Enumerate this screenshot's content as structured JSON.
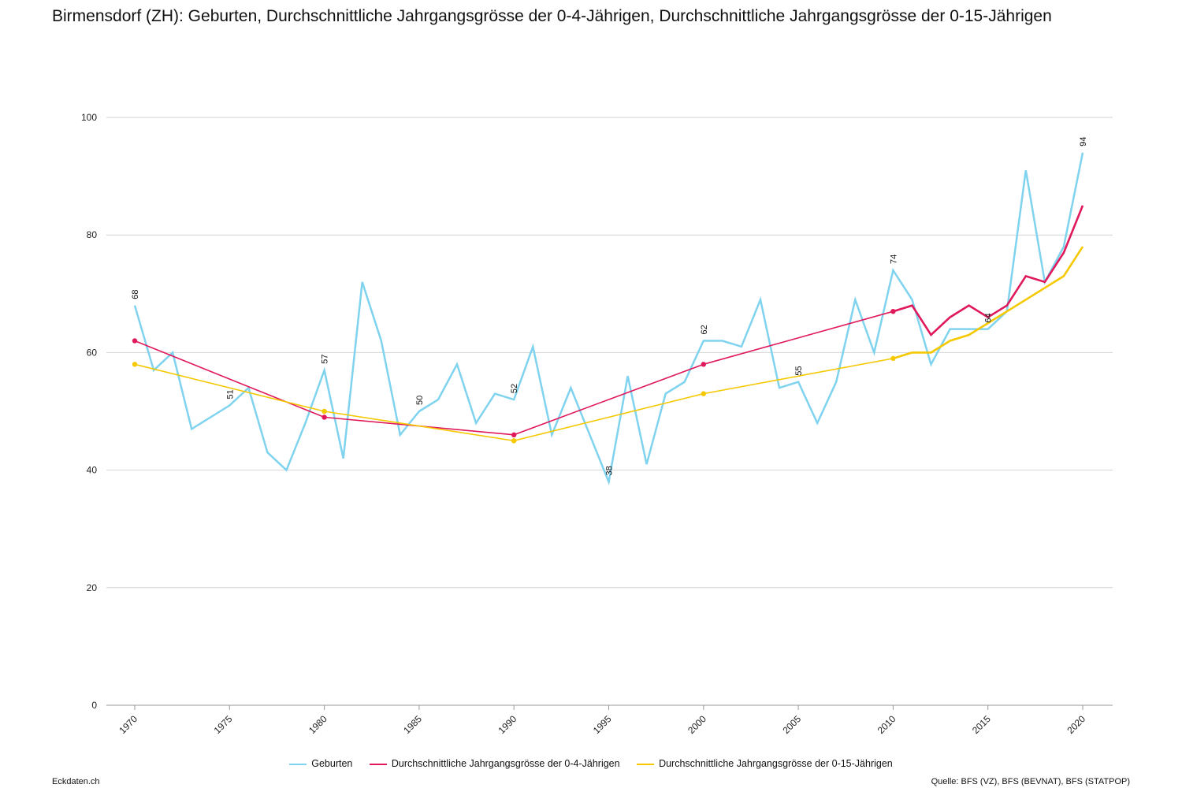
{
  "page": {
    "title": "Birmensdorf (ZH): Geburten, Durchschnittliche Jahrgangsgrösse der 0-4-Jährigen, Durchschnittliche Jahrgangsgrösse der 0-15-Jährigen",
    "site": "Eckdaten.ch",
    "source": "Quelle: BFS (VZ), BFS (BEVNAT), BFS (STATPOP)"
  },
  "chart_data": {
    "type": "line",
    "title": "Birmensdorf (ZH): Geburten, Durchschnittliche Jahrgangsgrösse der 0-4-Jährigen, Durchschnittliche Jahrgangsgrösse der 0-15-Jährigen",
    "xlabel": "",
    "ylabel": "",
    "xlim": [
      1970,
      2020
    ],
    "ylim": [
      0,
      100
    ],
    "y_ticks": [
      0,
      20,
      40,
      60,
      80,
      100
    ],
    "x_ticks": [
      1970,
      1975,
      1980,
      1985,
      1990,
      1995,
      2000,
      2005,
      2010,
      2015,
      2020
    ],
    "grid": "horizontal",
    "legend_position": "bottom",
    "series": [
      {
        "name": "Geburten",
        "color": "#7fd3ee",
        "x": [
          1970,
          1971,
          1972,
          1973,
          1974,
          1975,
          1976,
          1977,
          1978,
          1979,
          1980,
          1981,
          1982,
          1983,
          1984,
          1985,
          1986,
          1987,
          1988,
          1989,
          1990,
          1991,
          1992,
          1993,
          1994,
          1995,
          1996,
          1997,
          1998,
          1999,
          2000,
          2001,
          2002,
          2003,
          2004,
          2005,
          2006,
          2007,
          2008,
          2009,
          2010,
          2011,
          2012,
          2013,
          2014,
          2015,
          2016,
          2017,
          2018,
          2019,
          2020
        ],
        "y": [
          68,
          57,
          60,
          47,
          49,
          51,
          54,
          43,
          40,
          48,
          57,
          42,
          72,
          62,
          46,
          50,
          52,
          58,
          48,
          53,
          52,
          61,
          46,
          54,
          46,
          38,
          56,
          41,
          53,
          55,
          62,
          62,
          61,
          69,
          54,
          55,
          48,
          55,
          69,
          60,
          74,
          69,
          58,
          64,
          64,
          64,
          67,
          91,
          72,
          78,
          94
        ],
        "labels": [
          {
            "x": 1970,
            "y": 68,
            "text": "68"
          },
          {
            "x": 1975,
            "y": 51,
            "text": "51"
          },
          {
            "x": 1980,
            "y": 57,
            "text": "57"
          },
          {
            "x": 1985,
            "y": 50,
            "text": "50"
          },
          {
            "x": 1990,
            "y": 52,
            "text": "52"
          },
          {
            "x": 1995,
            "y": 38,
            "text": "38"
          },
          {
            "x": 2000,
            "y": 62,
            "text": "62"
          },
          {
            "x": 2005,
            "y": 55,
            "text": "55"
          },
          {
            "x": 2010,
            "y": 74,
            "text": "74"
          },
          {
            "x": 2015,
            "y": 64,
            "text": "64"
          },
          {
            "x": 2020,
            "y": 94,
            "text": "94"
          }
        ]
      },
      {
        "name": "Durchschnittliche Jahrgangsgrösse der 0-4-Jährigen",
        "color": "#e0195a",
        "x": [
          1970,
          1980,
          1990,
          2000,
          2010,
          2011,
          2012,
          2013,
          2014,
          2015,
          2016,
          2017,
          2018,
          2019,
          2020
        ],
        "y": [
          62,
          49,
          46,
          58,
          67,
          68,
          63,
          66,
          68,
          66,
          68,
          73,
          72,
          77,
          85
        ],
        "markers": [
          1970,
          1980,
          1990,
          2000,
          2010
        ]
      },
      {
        "name": "Durchschnittliche Jahrgangsgrösse der 0-15-Jährigen",
        "color": "#f5c800",
        "x": [
          1970,
          1980,
          1990,
          2000,
          2010,
          2011,
          2012,
          2013,
          2014,
          2015,
          2016,
          2017,
          2018,
          2019,
          2020
        ],
        "y": [
          58,
          50,
          45,
          53,
          59,
          60,
          60,
          62,
          63,
          65,
          67,
          69,
          71,
          73,
          78
        ],
        "markers": [
          1970,
          1980,
          1990,
          2000,
          2010
        ]
      }
    ]
  }
}
